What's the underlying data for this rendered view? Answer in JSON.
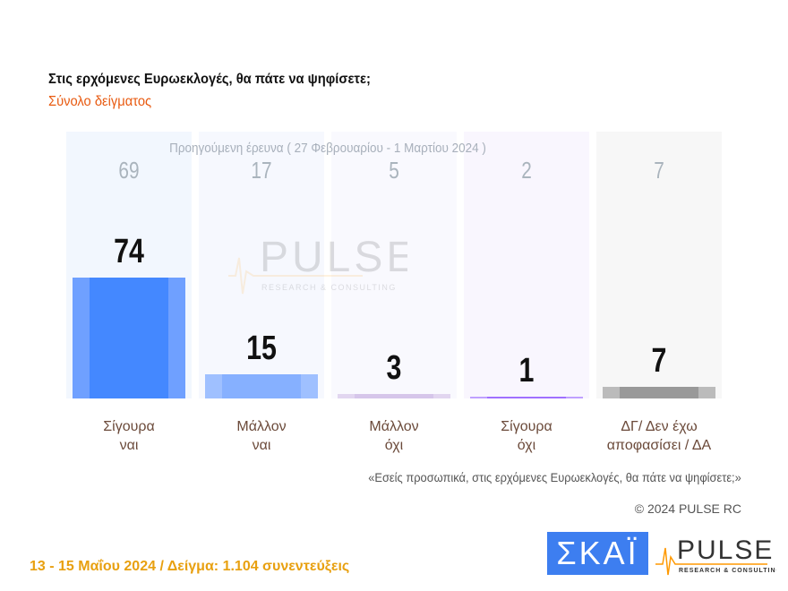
{
  "header": {
    "title": "Στις ερχόμενες Ευρωεκλογές, θα πάτε να ψηφίσετε;",
    "subtitle": "Σύνολο δείγματος"
  },
  "chart_data": {
    "type": "bar",
    "categories": [
      [
        "Σίγουρα",
        "ναι"
      ],
      [
        "Μάλλον",
        "ναι"
      ],
      [
        "Μάλλον",
        "όχι"
      ],
      [
        "Σίγουρα",
        "όχι"
      ],
      [
        "ΔΓ/ Δεν έχω",
        "αποφασίσει / ΔΑ"
      ]
    ],
    "series": [
      {
        "name": "Προηγούμενη έρευνα  ( 27 Φεβρουαρίου - 1 Μαρτίου 2024 )",
        "values": [
          69,
          17,
          5,
          2,
          7
        ]
      },
      {
        "values": [
          74,
          15,
          3,
          1,
          7
        ]
      }
    ],
    "ylim": [
      0,
      100
    ],
    "colors": [
      [
        "#4488ff",
        "#6fa0ff"
      ],
      [
        "#86b0ff",
        "#9fc0ff"
      ],
      [
        "#d6c6ea",
        "#e2d6f0"
      ],
      [
        "#a070ff",
        "#c0a0ff"
      ],
      [
        "#999999",
        "#bbbbbb"
      ]
    ],
    "column_bg": [
      "#f2f7fe",
      "#f6f8fe",
      "#f9f9fe",
      "#f9f6fe",
      "#f7f7f7"
    ]
  },
  "notes": {
    "question": "«Εσείς προσωπικά, στις ερχόμενες Ευρωεκλογές, θα πάτε να ψηφίσετε;»",
    "copyright": "© 2024 PULSE RC"
  },
  "footer": {
    "text": "13 - 15  Μαΐου 2024  /  Δείγμα:  1.104 συνεντεύξεις"
  },
  "logos": {
    "skai": "ΣΚΑΪ",
    "pulse": "PULSE",
    "pulse_sub": "RESEARCH & CONSULTING"
  }
}
